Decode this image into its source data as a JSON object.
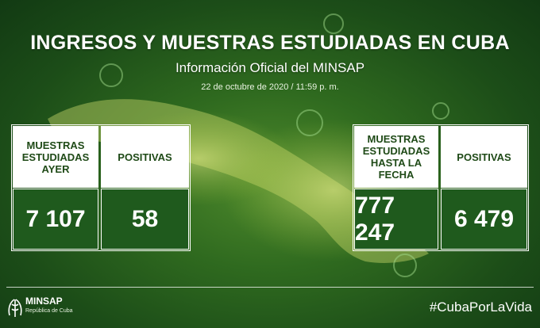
{
  "header": {
    "title": "INGRESOS Y MUESTRAS ESTUDIADAS EN CUBA",
    "subtitle": "Información Oficial del MINSAP",
    "date": "22 de octubre de 2020 / 11:59 p. m."
  },
  "left_panel": {
    "col1_label": "MUESTRAS ESTUDIADAS AYER",
    "col1_value": "7 107",
    "col2_label": "POSITIVAS",
    "col2_value": "58"
  },
  "right_panel": {
    "col1_label": "MUESTRAS ESTUDIADAS HASTA LA FECHA",
    "col1_value": "777 247",
    "col2_label": "POSITIVAS",
    "col2_value": "6 479"
  },
  "footer": {
    "logo_name": "MINSAP",
    "logo_sub": "República de Cuba",
    "hashtag": "#CubaPorLaVida",
    "logo_icon": "minsap-emblem-icon"
  },
  "colors": {
    "background_dark": "#123a13",
    "background_light": "#4f8a2c",
    "value_cell": "#1f5a1d",
    "label_text": "#1f4a17"
  }
}
